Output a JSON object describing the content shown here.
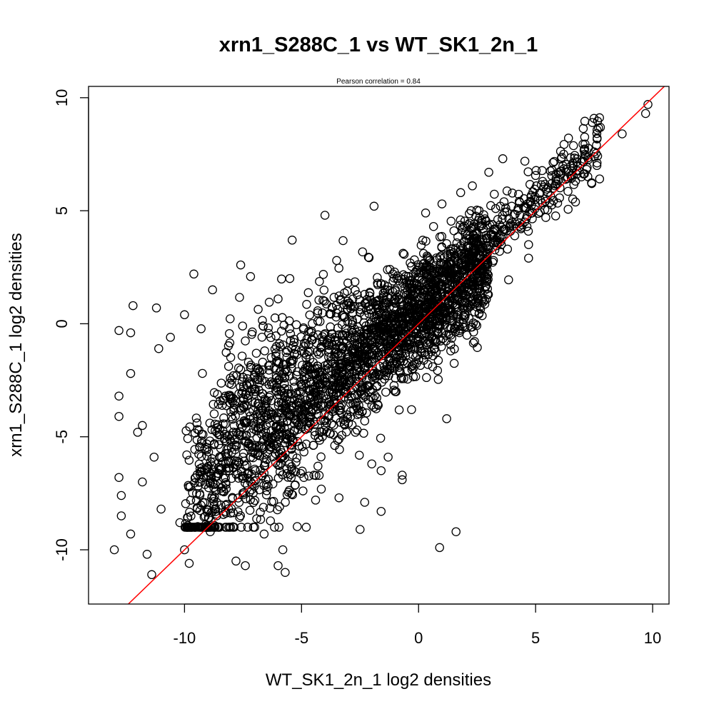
{
  "chart_data": {
    "type": "scatter",
    "title": "xrn1_S288C_1 vs WT_SK1_2n_1",
    "subtitle": "Pearson correlation =  0.84",
    "xlabel": "WT_SK1_2n_1 log2 densities",
    "ylabel": "xrn1_S288C_1 log2 densities",
    "xlim": [
      -14.1,
      10.7
    ],
    "ylim": [
      -12.4,
      10.5
    ],
    "xticks": [
      -10,
      -5,
      0,
      5,
      10
    ],
    "yticks": [
      -10,
      -5,
      0,
      5,
      10
    ],
    "grid": false,
    "point_style": "open-circle",
    "colors": {
      "points": "#000000",
      "reference_line": "#ff0000"
    },
    "reference_line": {
      "slope": 1,
      "intercept": 0
    },
    "dense_cloud": {
      "core": {
        "x_range": [
          -10,
          3
        ],
        "y_range": [
          -9,
          4
        ]
      },
      "trend": {
        "slope": 0.73,
        "intercept": 0.5
      },
      "note": "several thousand overlapping points forming solid black band"
    },
    "series": [
      {
        "points": [
          [
            9.8,
            9.7
          ],
          [
            9.7,
            9.3
          ],
          [
            8.7,
            8.4
          ],
          [
            7.6,
            7.9
          ],
          [
            7.4,
            6.2
          ],
          [
            7.1,
            7.5
          ],
          [
            6.6,
            7.0
          ],
          [
            6.2,
            7.5
          ],
          [
            5.7,
            6.8
          ],
          [
            5.3,
            6.3
          ],
          [
            4.8,
            5.6
          ],
          [
            4.7,
            3.5
          ],
          [
            4.7,
            2.9
          ],
          [
            3.6,
            7.3
          ],
          [
            3.0,
            6.7
          ],
          [
            2.3,
            6.1
          ],
          [
            1.8,
            5.8
          ],
          [
            1.0,
            5.3
          ],
          [
            0.3,
            4.9
          ],
          [
            -1.9,
            5.2
          ],
          [
            -4.0,
            4.8
          ],
          [
            -5.4,
            3.7
          ],
          [
            -7.6,
            2.6
          ],
          [
            -9.6,
            2.2
          ],
          [
            -12.2,
            0.8
          ],
          [
            -11.2,
            0.7
          ],
          [
            -12.8,
            -0.3
          ],
          [
            -12.3,
            -0.4
          ],
          [
            -10.6,
            -0.6
          ],
          [
            -12.3,
            -2.2
          ],
          [
            -12.8,
            -3.2
          ],
          [
            -12.8,
            -4.1
          ],
          [
            -12.0,
            -4.8
          ],
          [
            -12.8,
            -6.8
          ],
          [
            -12.7,
            -7.6
          ],
          [
            -12.7,
            -8.5
          ],
          [
            -12.3,
            -9.3
          ],
          [
            -13.0,
            -10.0
          ],
          [
            -11.6,
            -10.2
          ],
          [
            -11.4,
            -11.1
          ],
          [
            -10.0,
            -10.0
          ],
          [
            -9.8,
            -10.6
          ],
          [
            -7.8,
            -10.5
          ],
          [
            -7.4,
            -10.7
          ],
          [
            -6.0,
            -10.7
          ],
          [
            -5.7,
            -11.0
          ],
          [
            -5.8,
            -10.0
          ],
          [
            -4.8,
            -9.0
          ],
          [
            -4.4,
            -7.8
          ],
          [
            -3.4,
            -7.7
          ],
          [
            -2.5,
            -9.1
          ],
          [
            -2.3,
            -7.9
          ],
          [
            -1.6,
            -8.3
          ],
          [
            -2.0,
            -6.2
          ],
          [
            -1.6,
            -6.5
          ],
          [
            -1.3,
            -5.9
          ],
          [
            -0.7,
            -6.7
          ],
          [
            -0.7,
            -6.9
          ],
          [
            -0.3,
            -3.8
          ],
          [
            -1.0,
            -3.0
          ],
          [
            -0.3,
            -1.9
          ],
          [
            0.4,
            -1.8
          ],
          [
            0.6,
            -1.9
          ],
          [
            0.7,
            -1.1
          ],
          [
            1.0,
            -0.4
          ],
          [
            1.4,
            -0.2
          ],
          [
            1.6,
            -0.1
          ],
          [
            1.2,
            -4.2
          ],
          [
            1.6,
            -9.2
          ],
          [
            0.9,
            -9.9
          ],
          [
            2.0,
            0.4
          ],
          [
            3.2,
            2.8
          ],
          [
            3.4,
            3.6
          ],
          [
            -3.5,
            2.8
          ],
          [
            -5.5,
            2.0
          ],
          [
            -6.0,
            1.1
          ],
          [
            -8.8,
            1.5
          ],
          [
            -10.0,
            0.4
          ],
          [
            -11.1,
            -1.1
          ],
          [
            -11.8,
            -4.5
          ],
          [
            -11.3,
            -5.9
          ],
          [
            -11.8,
            -7.0
          ],
          [
            -11.0,
            -8.2
          ],
          [
            -10.2,
            -8.8
          ],
          [
            -8.9,
            -9.2
          ],
          [
            -7.3,
            -9.0
          ],
          [
            -6.6,
            -9.3
          ],
          [
            -4.9,
            -6.8
          ],
          [
            -4.3,
            -6.3
          ],
          [
            -3.0,
            -4.4
          ],
          [
            -2.3,
            -4.3
          ],
          [
            -2.0,
            -3.6
          ],
          [
            -3.4,
            -5.1
          ],
          [
            -2.7,
            -4.8
          ],
          [
            -1.4,
            -2.3
          ],
          [
            -1.2,
            -1.5
          ],
          [
            -0.4,
            -0.9
          ],
          [
            -0.1,
            -0.7
          ],
          [
            0.2,
            -0.3
          ],
          [
            2.6,
            1.7
          ],
          [
            3.8,
            3.3
          ]
        ]
      }
    ]
  }
}
